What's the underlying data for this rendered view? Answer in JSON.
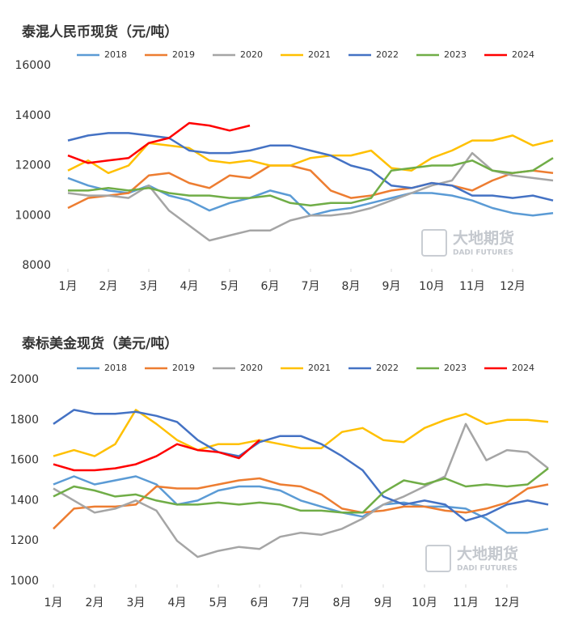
{
  "chart_data": [
    {
      "type": "line",
      "title": "泰混人民币现货（元/吨）",
      "x": [
        1,
        1.5,
        2,
        2.5,
        3,
        3.5,
        4,
        4.5,
        5,
        5.5,
        6,
        6.5,
        7,
        7.5,
        8,
        8.5,
        9,
        9.5,
        10,
        10.5,
        11,
        11.5,
        12,
        12.5,
        13
      ],
      "xlim": [
        1,
        13
      ],
      "xticks": [
        {
          "value": 1,
          "label": "1月"
        },
        {
          "value": 2,
          "label": "2月"
        },
        {
          "value": 3,
          "label": "3月"
        },
        {
          "value": 4,
          "label": "4月"
        },
        {
          "value": 5,
          "label": "5月"
        },
        {
          "value": 6,
          "label": "6月"
        },
        {
          "value": 7,
          "label": "7月"
        },
        {
          "value": 8,
          "label": "8月"
        },
        {
          "value": 9,
          "label": "9月"
        },
        {
          "value": 10,
          "label": "10月"
        },
        {
          "value": 11,
          "label": "11月"
        },
        {
          "value": 12,
          "label": "12月"
        }
      ],
      "ylim": [
        8000,
        16000
      ],
      "yticks": [
        8000,
        10000,
        12000,
        14000,
        16000
      ],
      "grid": false,
      "legend": "top",
      "watermark": "大地期货",
      "watermark_sub": "DADI FUTURES",
      "series": [
        {
          "name": "2018",
          "color": "#5b9bd5",
          "values": [
            11500,
            11200,
            11000,
            10900,
            11200,
            10800,
            10600,
            10200,
            10500,
            10700,
            11000,
            10800,
            10000,
            10200,
            10300,
            10500,
            10700,
            10900,
            10900,
            10800,
            10600,
            10300,
            10100,
            10000,
            10100
          ]
        },
        {
          "name": "2019",
          "color": "#ed7d31",
          "values": [
            10300,
            10700,
            10800,
            10900,
            11600,
            11700,
            11300,
            11100,
            11600,
            11500,
            12000,
            12000,
            11800,
            11000,
            10700,
            10800,
            11000,
            11100,
            11300,
            11200,
            11000,
            11400,
            11700,
            11800,
            11700
          ]
        },
        {
          "name": "2020",
          "color": "#a5a5a5",
          "values": [
            10900,
            10800,
            10800,
            10700,
            11200,
            10200,
            9600,
            9000,
            9200,
            9400,
            9400,
            9800,
            10000,
            10000,
            10100,
            10300,
            10600,
            10900,
            11200,
            11400,
            12500,
            11800,
            11600,
            11500,
            11400
          ]
        },
        {
          "name": "2021",
          "color": "#ffc000",
          "values": [
            11800,
            12200,
            11700,
            12000,
            12900,
            12800,
            12700,
            12200,
            12100,
            12200,
            12000,
            12000,
            12300,
            12400,
            12400,
            12600,
            11900,
            11800,
            12300,
            12600,
            13000,
            13000,
            13200,
            12800,
            13000
          ]
        },
        {
          "name": "2022",
          "color": "#4472c4",
          "values": [
            13000,
            13200,
            13300,
            13300,
            13200,
            13100,
            12600,
            12500,
            12500,
            12600,
            12800,
            12800,
            12600,
            12400,
            12000,
            11800,
            11200,
            11100,
            11300,
            11200,
            10800,
            10800,
            10700,
            10800,
            10600
          ]
        },
        {
          "name": "2023",
          "color": "#70ad47",
          "values": [
            11000,
            11000,
            11100,
            11000,
            11100,
            10900,
            10800,
            10800,
            10700,
            10700,
            10800,
            10500,
            10400,
            10500,
            10500,
            10700,
            11800,
            11900,
            12000,
            12000,
            12200,
            11800,
            11700,
            11800,
            12300
          ]
        },
        {
          "name": "2024",
          "color": "#ff0000",
          "values": [
            12400,
            12100,
            12200,
            12300,
            12900,
            13100,
            13700,
            13600,
            13400,
            13600,
            null,
            null,
            null,
            null,
            null,
            null,
            null,
            null,
            null,
            null,
            null,
            null,
            null,
            null,
            null
          ]
        }
      ]
    },
    {
      "type": "line",
      "title": "泰标美金现货（美元/吨）",
      "x": [
        1,
        1.5,
        2,
        2.5,
        3,
        3.5,
        4,
        4.5,
        5,
        5.5,
        6,
        6.5,
        7,
        7.5,
        8,
        8.5,
        9,
        9.5,
        10,
        10.5,
        11,
        11.5,
        12,
        12.5,
        13
      ],
      "xlim": [
        1,
        13
      ],
      "xticks": [
        {
          "value": 1,
          "label": "1月"
        },
        {
          "value": 2,
          "label": "2月"
        },
        {
          "value": 3,
          "label": "3月"
        },
        {
          "value": 4,
          "label": "4月"
        },
        {
          "value": 5,
          "label": "5月"
        },
        {
          "value": 6,
          "label": "6月"
        },
        {
          "value": 7,
          "label": "7月"
        },
        {
          "value": 8,
          "label": "8月"
        },
        {
          "value": 9,
          "label": "9月"
        },
        {
          "value": 10,
          "label": "10月"
        },
        {
          "value": 11,
          "label": "11月"
        },
        {
          "value": 12,
          "label": "12月"
        }
      ],
      "ylim": [
        1000,
        2000
      ],
      "yticks": [
        1000,
        1200,
        1400,
        1600,
        1800,
        2000
      ],
      "grid": false,
      "legend": "top",
      "watermark": "大地期货",
      "watermark_sub": "DADI FUTURES",
      "series": [
        {
          "name": "2018",
          "color": "#5b9bd5",
          "values": [
            1480,
            1520,
            1480,
            1500,
            1520,
            1480,
            1380,
            1400,
            1450,
            1470,
            1470,
            1450,
            1400,
            1370,
            1340,
            1320,
            1380,
            1390,
            1370,
            1370,
            1360,
            1310,
            1240,
            1240,
            1260
          ]
        },
        {
          "name": "2019",
          "color": "#ed7d31",
          "values": [
            1260,
            1360,
            1370,
            1370,
            1380,
            1470,
            1460,
            1460,
            1480,
            1500,
            1510,
            1480,
            1470,
            1430,
            1360,
            1340,
            1350,
            1370,
            1370,
            1350,
            1340,
            1360,
            1390,
            1460,
            1480
          ]
        },
        {
          "name": "2020",
          "color": "#a5a5a5",
          "values": [
            1460,
            1400,
            1340,
            1360,
            1400,
            1350,
            1200,
            1120,
            1150,
            1170,
            1160,
            1220,
            1240,
            1230,
            1260,
            1310,
            1380,
            1420,
            1470,
            1520,
            1780,
            1600,
            1650,
            1640,
            1560
          ]
        },
        {
          "name": "2021",
          "color": "#ffc000",
          "values": [
            1620,
            1650,
            1620,
            1680,
            1850,
            1780,
            1700,
            1650,
            1680,
            1680,
            1700,
            1680,
            1660,
            1660,
            1740,
            1760,
            1700,
            1690,
            1760,
            1800,
            1830,
            1780,
            1800,
            1800,
            1790
          ]
        },
        {
          "name": "2022",
          "color": "#4472c4",
          "values": [
            1780,
            1850,
            1830,
            1830,
            1840,
            1820,
            1790,
            1700,
            1640,
            1620,
            1690,
            1720,
            1720,
            1680,
            1620,
            1550,
            1420,
            1380,
            1400,
            1380,
            1300,
            1330,
            1380,
            1400,
            1380
          ]
        },
        {
          "name": "2023",
          "color": "#70ad47",
          "values": [
            1420,
            1470,
            1450,
            1420,
            1430,
            1400,
            1380,
            1380,
            1390,
            1380,
            1390,
            1380,
            1350,
            1350,
            1340,
            1340,
            1440,
            1500,
            1480,
            1510,
            1470,
            1480,
            1470,
            1480,
            1560
          ]
        },
        {
          "name": "2024",
          "color": "#ff0000",
          "values": [
            1580,
            1550,
            1550,
            1560,
            1580,
            1620,
            1680,
            1650,
            1640,
            1610,
            1700,
            null,
            null,
            null,
            null,
            null,
            null,
            null,
            null,
            null,
            null,
            null,
            null,
            null,
            null
          ]
        }
      ]
    }
  ]
}
